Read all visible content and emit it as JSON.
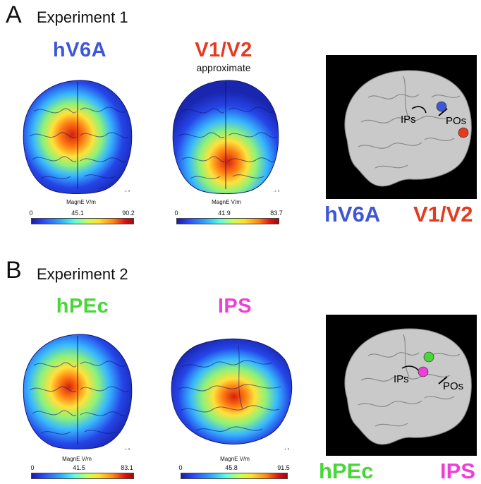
{
  "panelA": {
    "letter": "A",
    "title": "Experiment 1",
    "maps": [
      {
        "region": "hV6A",
        "color": "#3d57d6",
        "subtitle": "",
        "cbar_label": "MagnE V/m",
        "ticks": [
          "0",
          "45.1",
          "90.2"
        ]
      },
      {
        "region": "V1/V2",
        "color": "#e63a1f",
        "subtitle": "approximate",
        "cbar_label": "MagnE V/m",
        "ticks": [
          "0",
          "41.9",
          "83.7"
        ]
      }
    ],
    "brain": {
      "sulci": [
        "IPs",
        "POs"
      ],
      "targets": [
        {
          "name": "hV6A",
          "color": "#3d57d6"
        },
        {
          "name": "V1/V2",
          "color": "#e63a1f"
        }
      ]
    }
  },
  "panelB": {
    "letter": "B",
    "title": "Experiment 2",
    "maps": [
      {
        "region": "hPEc",
        "color": "#49d63a",
        "subtitle": "",
        "cbar_label": "MagnE V/m",
        "ticks": [
          "0",
          "41.5",
          "83.1"
        ]
      },
      {
        "region": "IPS",
        "color": "#ee3fd8",
        "subtitle": "",
        "cbar_label": "MagnE V/m",
        "ticks": [
          "0",
          "45.8",
          "91.5"
        ]
      }
    ],
    "brain": {
      "sulci": [
        "IPs",
        "POs"
      ],
      "targets": [
        {
          "name": "hPEc",
          "color": "#49d63a"
        },
        {
          "name": "IPS",
          "color": "#ee3fd8"
        }
      ]
    }
  }
}
